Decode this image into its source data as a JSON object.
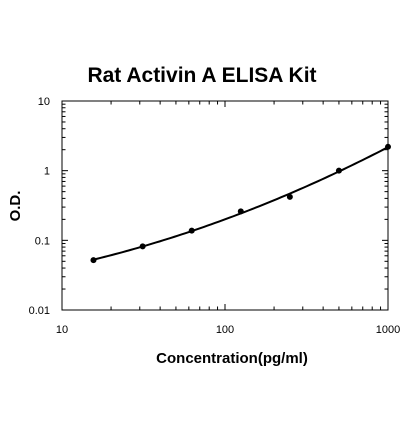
{
  "chart_data": {
    "type": "scatter",
    "title": "Rat Activin A ELISA Kit",
    "xlabel": "Concentration(pg/ml)",
    "ylabel": "O.D.",
    "xscale": "log",
    "yscale": "log",
    "xlim": [
      10,
      1000
    ],
    "ylim": [
      0.01,
      10
    ],
    "xticks": [
      "10",
      "100",
      "1000"
    ],
    "yticks": [
      "0.01",
      "0.1",
      "1",
      "10"
    ],
    "grid": false,
    "legend": "none",
    "series": [
      {
        "x": [
          15.6,
          31.25,
          62.5,
          125,
          250,
          500,
          1000
        ],
        "y": [
          0.052,
          0.082,
          0.138,
          0.26,
          0.42,
          1.0,
          2.2
        ]
      }
    ],
    "fit_curve": true,
    "colors": {
      "points": "#000000",
      "curve": "#000000",
      "axes": "#000000"
    }
  }
}
